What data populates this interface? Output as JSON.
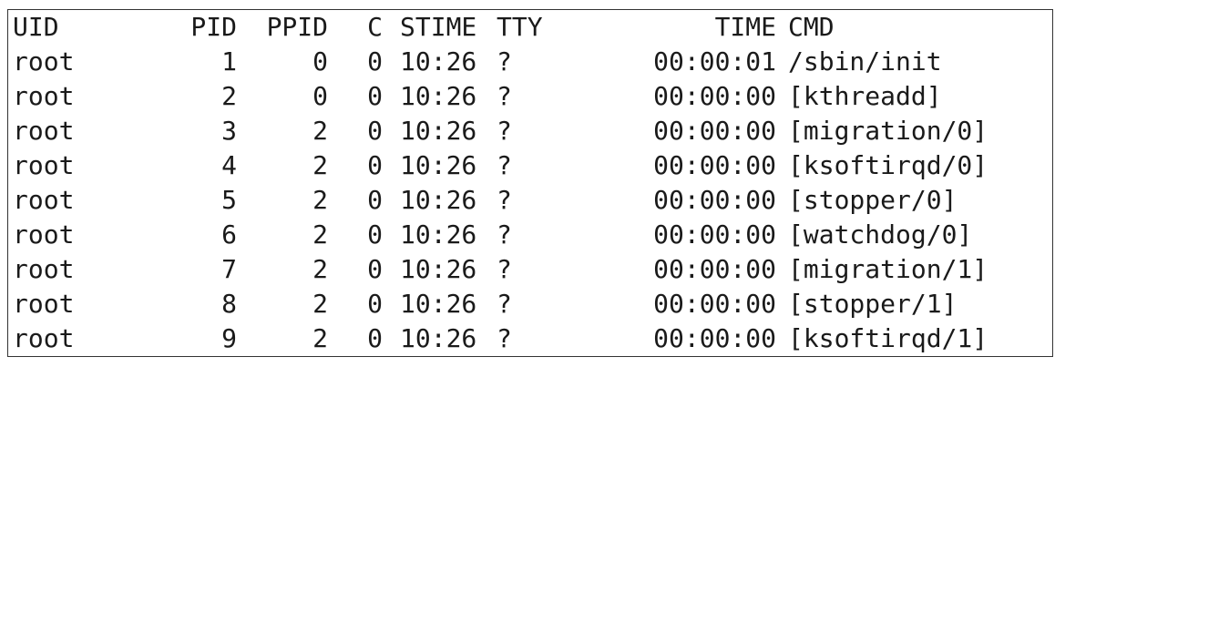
{
  "header": {
    "uid": "UID",
    "pid": "PID",
    "ppid": "PPID",
    "c": "C",
    "stime": "STIME",
    "tty": "TTY",
    "time": "TIME",
    "cmd": "CMD"
  },
  "processes": [
    {
      "uid": "root",
      "pid": "1",
      "ppid": "0",
      "c": "0",
      "stime": "10:26",
      "tty": "?",
      "time": "00:00:01",
      "cmd": "/sbin/init"
    },
    {
      "uid": "root",
      "pid": "2",
      "ppid": "0",
      "c": "0",
      "stime": "10:26",
      "tty": "?",
      "time": "00:00:00",
      "cmd": "[kthreadd]"
    },
    {
      "uid": "root",
      "pid": "3",
      "ppid": "2",
      "c": "0",
      "stime": "10:26",
      "tty": "?",
      "time": "00:00:00",
      "cmd": "[migration/0]"
    },
    {
      "uid": "root",
      "pid": "4",
      "ppid": "2",
      "c": "0",
      "stime": "10:26",
      "tty": "?",
      "time": "00:00:00",
      "cmd": "[ksoftirqd/0]"
    },
    {
      "uid": "root",
      "pid": "5",
      "ppid": "2",
      "c": "0",
      "stime": "10:26",
      "tty": "?",
      "time": "00:00:00",
      "cmd": "[stopper/0]"
    },
    {
      "uid": "root",
      "pid": "6",
      "ppid": "2",
      "c": "0",
      "stime": "10:26",
      "tty": "?",
      "time": "00:00:00",
      "cmd": "[watchdog/0]"
    },
    {
      "uid": "root",
      "pid": "7",
      "ppid": "2",
      "c": "0",
      "stime": "10:26",
      "tty": "?",
      "time": "00:00:00",
      "cmd": "[migration/1]"
    },
    {
      "uid": "root",
      "pid": "8",
      "ppid": "2",
      "c": "0",
      "stime": "10:26",
      "tty": "?",
      "time": "00:00:00",
      "cmd": "[stopper/1]"
    },
    {
      "uid": "root",
      "pid": "9",
      "ppid": "2",
      "c": "0",
      "stime": "10:26",
      "tty": "?",
      "time": "00:00:00",
      "cmd": "[ksoftirqd/1]"
    }
  ]
}
